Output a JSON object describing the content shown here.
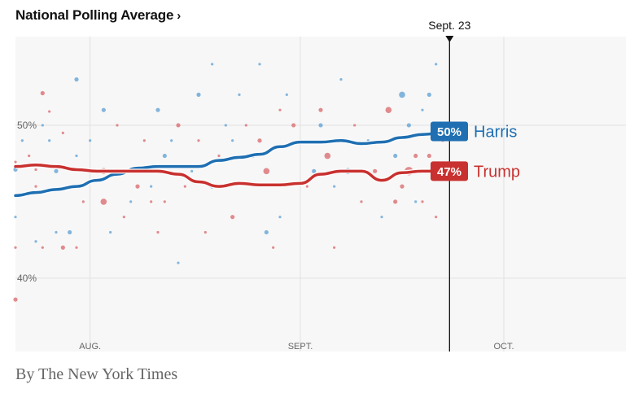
{
  "header": {
    "title": "National Polling Average",
    "chevron": "›"
  },
  "byline": "By The New York Times",
  "colors": {
    "harris": "#1f6fb2",
    "trump": "#c8312f",
    "harris_dot": "#5b9fd4",
    "trump_dot": "#d9666a",
    "background": "#f7f7f7",
    "grid": "#e2e2e2"
  },
  "chart_data": {
    "type": "line",
    "title": "National Polling Average",
    "x_ticks": [
      {
        "date": "2024-08-01",
        "label": "AUG."
      },
      {
        "date": "2024-09-01",
        "label": "SEPT."
      },
      {
        "date": "2024-10-01",
        "label": "OCT."
      }
    ],
    "y_ticks": [
      {
        "value": 50,
        "label": "50%"
      },
      {
        "value": 40,
        "label": "40%"
      }
    ],
    "xlim": [
      "2024-07-21",
      "2024-10-19"
    ],
    "ylim": [
      35.2,
      55.8
    ],
    "current_marker": {
      "date": "2024-09-23",
      "label": "Sept. 23"
    },
    "grid": true,
    "series": [
      {
        "name": "Harris",
        "latest_label": "50%",
        "points": [
          [
            "2024-07-21",
            45.4
          ],
          [
            "2024-07-24",
            45.6
          ],
          [
            "2024-07-27",
            45.8
          ],
          [
            "2024-07-30",
            46.0
          ],
          [
            "2024-08-02",
            46.4
          ],
          [
            "2024-08-05",
            46.8
          ],
          [
            "2024-08-08",
            47.2
          ],
          [
            "2024-08-11",
            47.3
          ],
          [
            "2024-08-14",
            47.3
          ],
          [
            "2024-08-17",
            47.3
          ],
          [
            "2024-08-20",
            47.7
          ],
          [
            "2024-08-23",
            47.9
          ],
          [
            "2024-08-26",
            48.1
          ],
          [
            "2024-08-29",
            48.6
          ],
          [
            "2024-09-01",
            48.9
          ],
          [
            "2024-09-04",
            48.9
          ],
          [
            "2024-09-07",
            49.0
          ],
          [
            "2024-09-10",
            48.8
          ],
          [
            "2024-09-13",
            48.9
          ],
          [
            "2024-09-16",
            49.2
          ],
          [
            "2024-09-19",
            49.4
          ],
          [
            "2024-09-23",
            49.6
          ]
        ]
      },
      {
        "name": "Trump",
        "latest_label": "47%",
        "points": [
          [
            "2024-07-21",
            47.3
          ],
          [
            "2024-07-24",
            47.4
          ],
          [
            "2024-07-27",
            47.3
          ],
          [
            "2024-07-30",
            47.1
          ],
          [
            "2024-08-02",
            47.0
          ],
          [
            "2024-08-05",
            47.0
          ],
          [
            "2024-08-08",
            47.0
          ],
          [
            "2024-08-11",
            47.0
          ],
          [
            "2024-08-14",
            46.8
          ],
          [
            "2024-08-17",
            46.3
          ],
          [
            "2024-08-20",
            46.0
          ],
          [
            "2024-08-23",
            46.2
          ],
          [
            "2024-08-26",
            46.1
          ],
          [
            "2024-08-29",
            46.1
          ],
          [
            "2024-09-01",
            46.2
          ],
          [
            "2024-09-04",
            46.8
          ],
          [
            "2024-09-07",
            47.0
          ],
          [
            "2024-09-10",
            47.0
          ],
          [
            "2024-09-13",
            46.4
          ],
          [
            "2024-09-16",
            46.9
          ],
          [
            "2024-09-19",
            47.0
          ],
          [
            "2024-09-23",
            47.0
          ]
        ]
      }
    ],
    "polls": [
      {
        "c": "harris",
        "d": "2024-07-21",
        "v": 47.1,
        "s": 2
      },
      {
        "c": "trump",
        "d": "2024-07-21",
        "v": 47.6,
        "s": 1
      },
      {
        "c": "trump",
        "d": "2024-07-21",
        "v": 38.6,
        "s": 2
      },
      {
        "c": "harris",
        "d": "2024-07-21",
        "v": 44.0,
        "s": 1
      },
      {
        "c": "trump",
        "d": "2024-07-21",
        "v": 42.0,
        "s": 1
      },
      {
        "c": "harris",
        "d": "2024-07-22",
        "v": 49.0,
        "s": 1
      },
      {
        "c": "trump",
        "d": "2024-07-23",
        "v": 48.0,
        "s": 1
      },
      {
        "c": "trump",
        "d": "2024-07-24",
        "v": 47.1,
        "s": 1
      },
      {
        "c": "trump",
        "d": "2024-07-24",
        "v": 46.0,
        "s": 1
      },
      {
        "c": "harris",
        "d": "2024-07-24",
        "v": 42.4,
        "s": 1
      },
      {
        "c": "trump",
        "d": "2024-07-25",
        "v": 52.1,
        "s": 2
      },
      {
        "c": "harris",
        "d": "2024-07-25",
        "v": 50.0,
        "s": 1
      },
      {
        "c": "trump",
        "d": "2024-07-25",
        "v": 42.0,
        "s": 1
      },
      {
        "c": "trump",
        "d": "2024-07-26",
        "v": 50.9,
        "s": 1
      },
      {
        "c": "harris",
        "d": "2024-07-26",
        "v": 49.0,
        "s": 1
      },
      {
        "c": "harris",
        "d": "2024-07-27",
        "v": 47.0,
        "s": 2
      },
      {
        "c": "harris",
        "d": "2024-07-27",
        "v": 43.0,
        "s": 1
      },
      {
        "c": "trump",
        "d": "2024-07-28",
        "v": 49.5,
        "s": 1
      },
      {
        "c": "trump",
        "d": "2024-07-28",
        "v": 42.0,
        "s": 2
      },
      {
        "c": "harris",
        "d": "2024-07-29",
        "v": 43.0,
        "s": 2
      },
      {
        "c": "harris",
        "d": "2024-07-30",
        "v": 53.0,
        "s": 2
      },
      {
        "c": "harris",
        "d": "2024-07-30",
        "v": 48.0,
        "s": 1
      },
      {
        "c": "trump",
        "d": "2024-07-30",
        "v": 42.0,
        "s": 1
      },
      {
        "c": "trump",
        "d": "2024-07-31",
        "v": 45.0,
        "s": 1
      },
      {
        "c": "harris",
        "d": "2024-08-01",
        "v": 49.0,
        "s": 1
      },
      {
        "c": "trump",
        "d": "2024-08-02",
        "v": 47.0,
        "s": 2
      },
      {
        "c": "harris",
        "d": "2024-08-03",
        "v": 51.0,
        "s": 2
      },
      {
        "c": "trump",
        "d": "2024-08-03",
        "v": 45.0,
        "s": 3
      },
      {
        "c": "trump",
        "d": "2024-08-03",
        "v": 47.0,
        "s": 3
      },
      {
        "c": "harris",
        "d": "2024-08-04",
        "v": 43.0,
        "s": 1
      },
      {
        "c": "trump",
        "d": "2024-08-05",
        "v": 50.0,
        "s": 1
      },
      {
        "c": "harris",
        "d": "2024-08-06",
        "v": 47.0,
        "s": 1
      },
      {
        "c": "trump",
        "d": "2024-08-06",
        "v": 44.0,
        "s": 1
      },
      {
        "c": "harris",
        "d": "2024-08-07",
        "v": 45.0,
        "s": 1
      },
      {
        "c": "trump",
        "d": "2024-08-08",
        "v": 46.0,
        "s": 2
      },
      {
        "c": "trump",
        "d": "2024-08-09",
        "v": 49.0,
        "s": 1
      },
      {
        "c": "harris",
        "d": "2024-08-10",
        "v": 46.0,
        "s": 1
      },
      {
        "c": "trump",
        "d": "2024-08-10",
        "v": 45.0,
        "s": 1
      },
      {
        "c": "harris",
        "d": "2024-08-11",
        "v": 51.0,
        "s": 2
      },
      {
        "c": "trump",
        "d": "2024-08-11",
        "v": 43.0,
        "s": 1
      },
      {
        "c": "harris",
        "d": "2024-08-12",
        "v": 48.0,
        "s": 2
      },
      {
        "c": "trump",
        "d": "2024-08-12",
        "v": 45.0,
        "s": 1
      },
      {
        "c": "harris",
        "d": "2024-08-13",
        "v": 49.0,
        "s": 1
      },
      {
        "c": "trump",
        "d": "2024-08-14",
        "v": 50.0,
        "s": 2
      },
      {
        "c": "harris",
        "d": "2024-08-14",
        "v": 41.0,
        "s": 1
      },
      {
        "c": "trump",
        "d": "2024-08-15",
        "v": 46.0,
        "s": 1
      },
      {
        "c": "harris",
        "d": "2024-08-16",
        "v": 47.0,
        "s": 1
      },
      {
        "c": "harris",
        "d": "2024-08-17",
        "v": 52.0,
        "s": 2
      },
      {
        "c": "trump",
        "d": "2024-08-17",
        "v": 49.0,
        "s": 1
      },
      {
        "c": "trump",
        "d": "2024-08-18",
        "v": 43.0,
        "s": 1
      },
      {
        "c": "harris",
        "d": "2024-08-19",
        "v": 54.0,
        "s": 1
      },
      {
        "c": "harris",
        "d": "2024-08-19",
        "v": 46.0,
        "s": 2
      },
      {
        "c": "trump",
        "d": "2024-08-20",
        "v": 48.0,
        "s": 1
      },
      {
        "c": "harris",
        "d": "2024-08-21",
        "v": 50.0,
        "s": 1
      },
      {
        "c": "trump",
        "d": "2024-08-22",
        "v": 44.0,
        "s": 2
      },
      {
        "c": "harris",
        "d": "2024-08-22",
        "v": 49.0,
        "s": 1
      },
      {
        "c": "harris",
        "d": "2024-08-23",
        "v": 52.0,
        "s": 1
      },
      {
        "c": "trump",
        "d": "2024-08-24",
        "v": 50.0,
        "s": 1
      },
      {
        "c": "harris",
        "d": "2024-08-25",
        "v": 48.0,
        "s": 2
      },
      {
        "c": "harris",
        "d": "2024-08-26",
        "v": 54.0,
        "s": 1
      },
      {
        "c": "trump",
        "d": "2024-08-26",
        "v": 49.0,
        "s": 2
      },
      {
        "c": "trump",
        "d": "2024-08-27",
        "v": 47.0,
        "s": 3
      },
      {
        "c": "harris",
        "d": "2024-08-27",
        "v": 43.0,
        "s": 2
      },
      {
        "c": "trump",
        "d": "2024-08-28",
        "v": 42.0,
        "s": 1
      },
      {
        "c": "trump",
        "d": "2024-08-29",
        "v": 51.0,
        "s": 1
      },
      {
        "c": "harris",
        "d": "2024-08-29",
        "v": 44.0,
        "s": 1
      },
      {
        "c": "harris",
        "d": "2024-08-30",
        "v": 52.0,
        "s": 1
      },
      {
        "c": "trump",
        "d": "2024-08-31",
        "v": 50.0,
        "s": 2
      },
      {
        "c": "trump",
        "d": "2024-09-02",
        "v": 46.0,
        "s": 1
      },
      {
        "c": "harris",
        "d": "2024-09-03",
        "v": 47.0,
        "s": 2
      },
      {
        "c": "trump",
        "d": "2024-09-04",
        "v": 51.0,
        "s": 2
      },
      {
        "c": "harris",
        "d": "2024-09-04",
        "v": 50.0,
        "s": 2
      },
      {
        "c": "trump",
        "d": "2024-09-05",
        "v": 48.0,
        "s": 3
      },
      {
        "c": "harris",
        "d": "2024-09-06",
        "v": 46.0,
        "s": 1
      },
      {
        "c": "trump",
        "d": "2024-09-06",
        "v": 42.0,
        "s": 1
      },
      {
        "c": "harris",
        "d": "2024-09-07",
        "v": 53.0,
        "s": 1
      },
      {
        "c": "harris",
        "d": "2024-09-08",
        "v": 47.0,
        "s": 3
      },
      {
        "c": "trump",
        "d": "2024-09-09",
        "v": 50.0,
        "s": 1
      },
      {
        "c": "trump",
        "d": "2024-09-10",
        "v": 45.0,
        "s": 1
      },
      {
        "c": "harris",
        "d": "2024-09-11",
        "v": 49.0,
        "s": 1
      },
      {
        "c": "trump",
        "d": "2024-09-12",
        "v": 47.0,
        "s": 2
      },
      {
        "c": "harris",
        "d": "2024-09-13",
        "v": 44.0,
        "s": 1
      },
      {
        "c": "trump",
        "d": "2024-09-14",
        "v": 51.0,
        "s": 3
      },
      {
        "c": "harris",
        "d": "2024-09-15",
        "v": 48.0,
        "s": 2
      },
      {
        "c": "trump",
        "d": "2024-09-15",
        "v": 45.0,
        "s": 2
      },
      {
        "c": "harris",
        "d": "2024-09-16",
        "v": 52.0,
        "s": 3
      },
      {
        "c": "trump",
        "d": "2024-09-16",
        "v": 46.0,
        "s": 2
      },
      {
        "c": "harris",
        "d": "2024-09-17",
        "v": 50.0,
        "s": 2
      },
      {
        "c": "trump",
        "d": "2024-09-17",
        "v": 47.0,
        "s": 4
      },
      {
        "c": "harris",
        "d": "2024-09-18",
        "v": 45.0,
        "s": 1
      },
      {
        "c": "trump",
        "d": "2024-09-18",
        "v": 48.0,
        "s": 2
      },
      {
        "c": "harris",
        "d": "2024-09-19",
        "v": 51.0,
        "s": 1
      },
      {
        "c": "trump",
        "d": "2024-09-19",
        "v": 45.0,
        "s": 1
      },
      {
        "c": "harris",
        "d": "2024-09-20",
        "v": 52.0,
        "s": 2
      },
      {
        "c": "trump",
        "d": "2024-09-20",
        "v": 48.0,
        "s": 2
      },
      {
        "c": "harris",
        "d": "2024-09-21",
        "v": 54.0,
        "s": 1
      },
      {
        "c": "trump",
        "d": "2024-09-21",
        "v": 44.0,
        "s": 1
      },
      {
        "c": "trump",
        "d": "2024-09-22",
        "v": 49.0,
        "s": 1
      }
    ]
  }
}
